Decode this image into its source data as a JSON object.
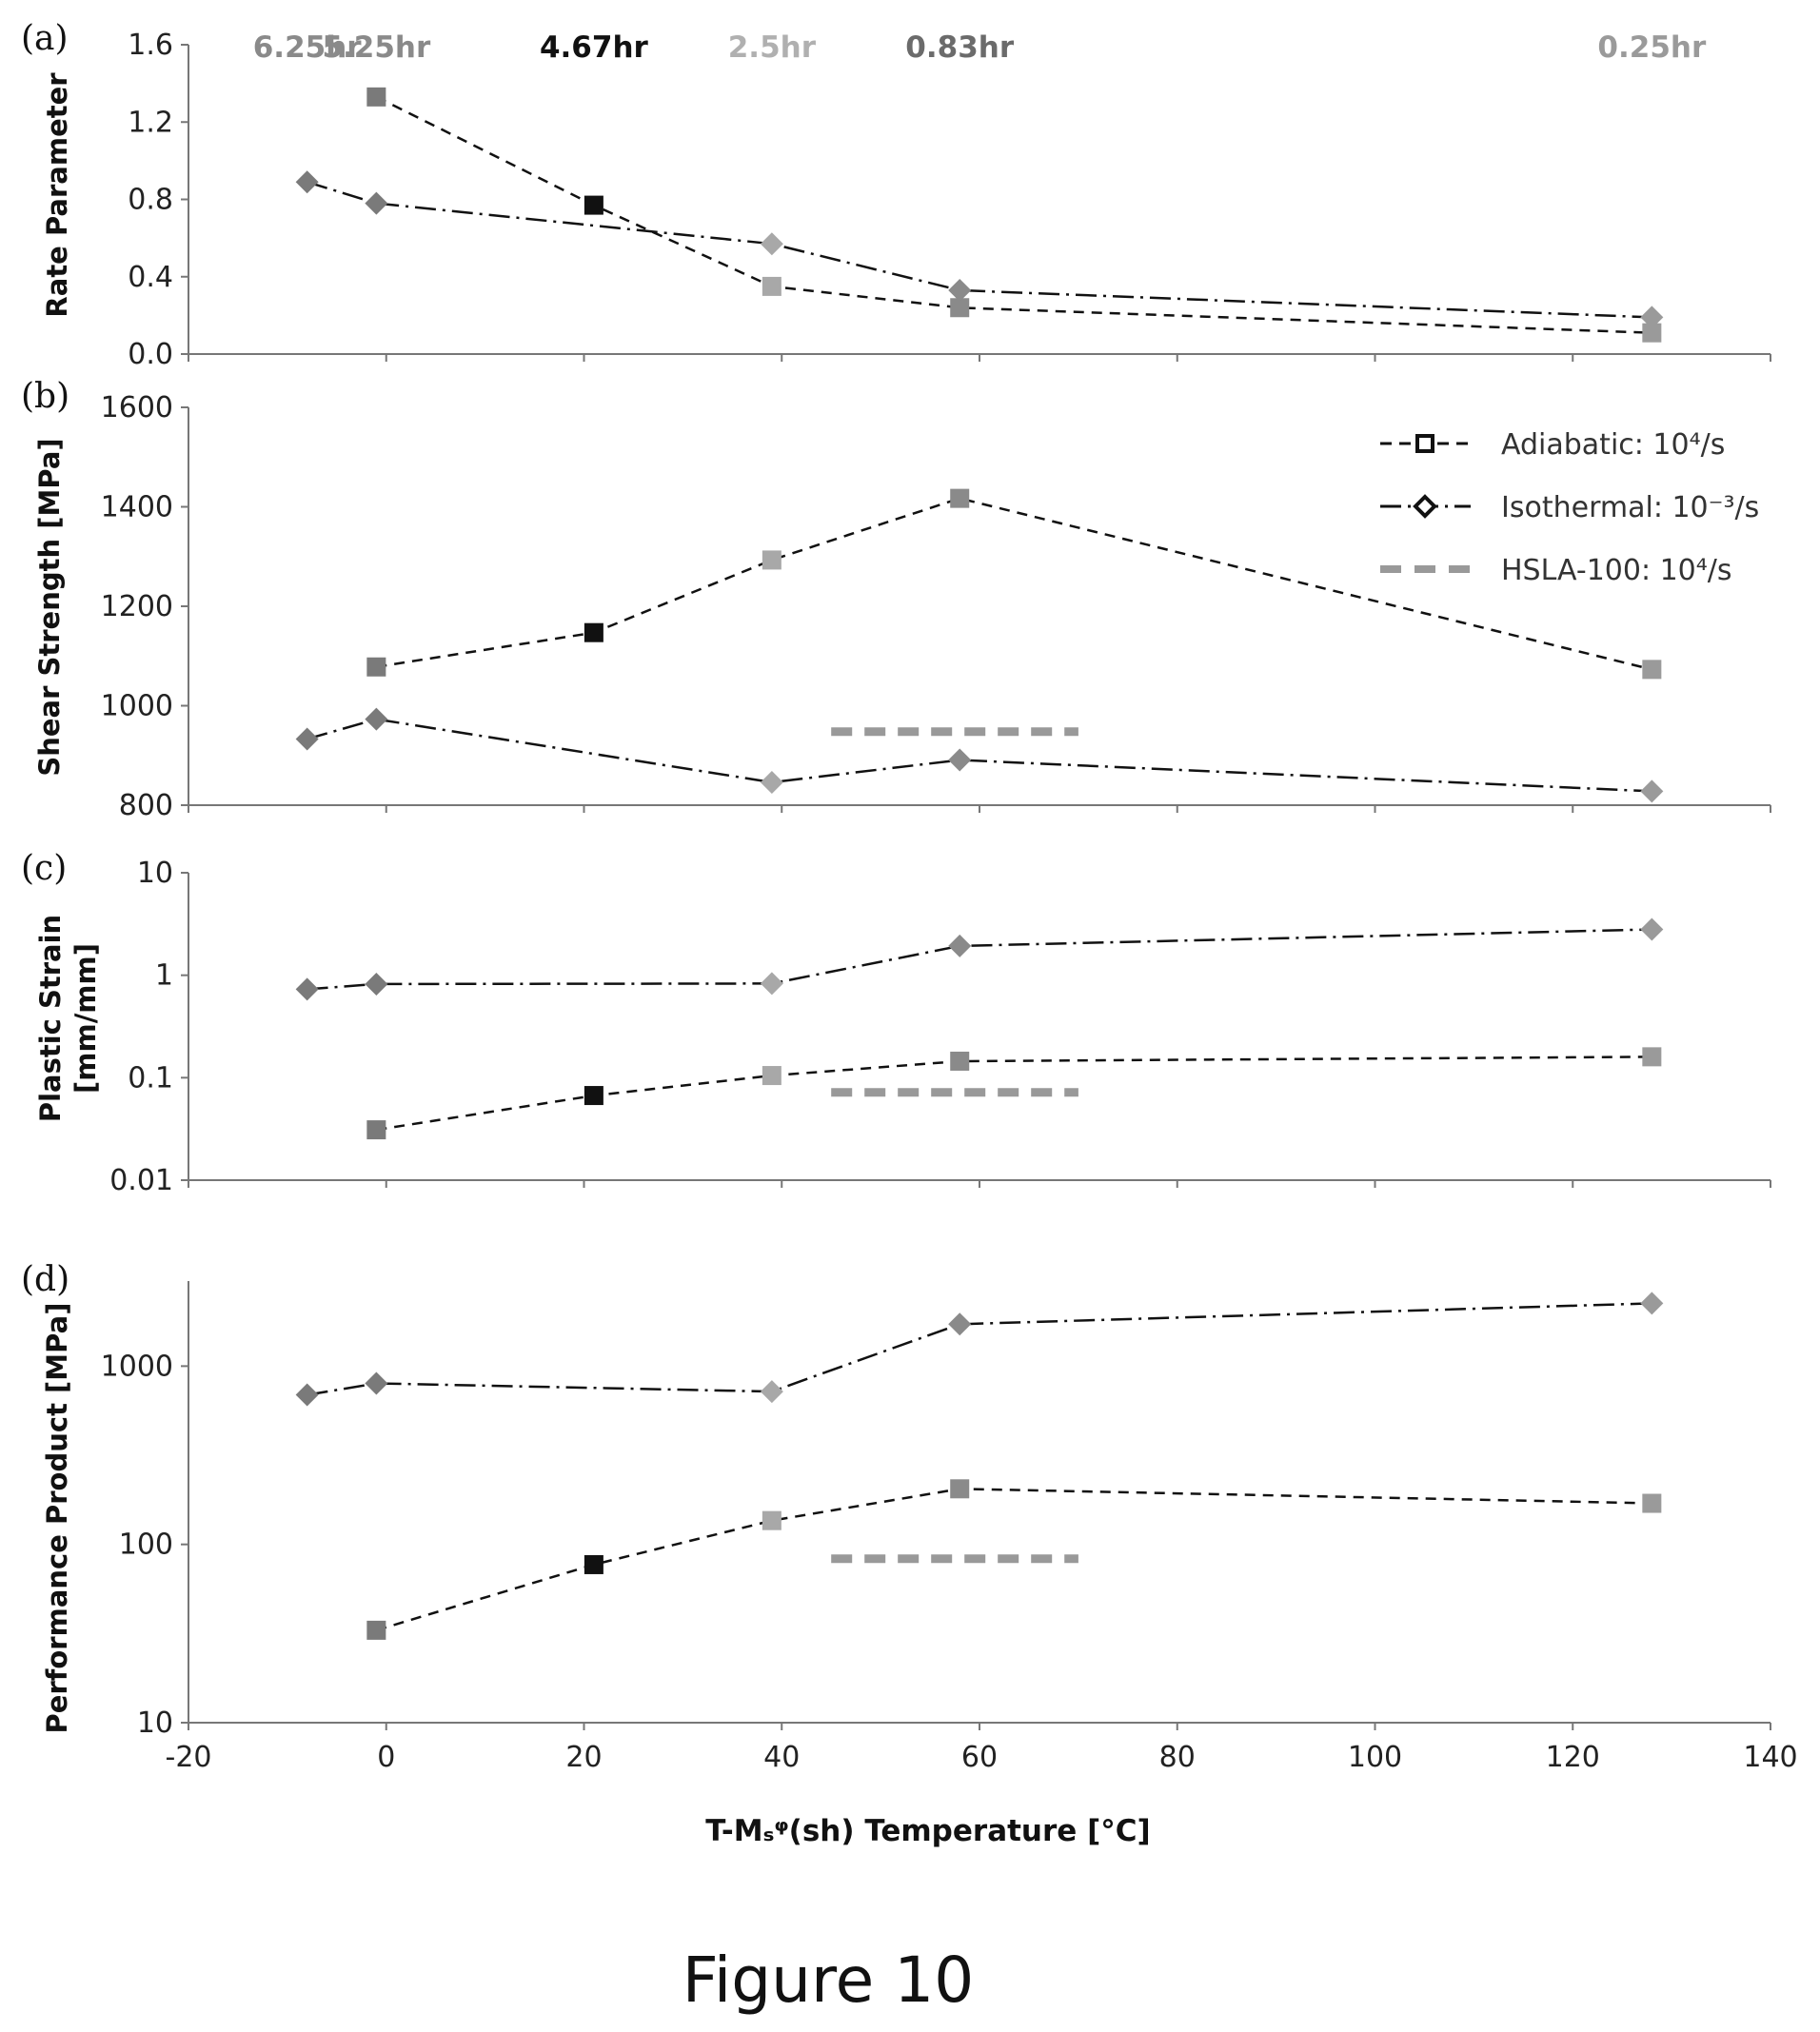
{
  "figure_caption": "Figure 10",
  "colors": {
    "time_labels": [
      "#8a8a8a",
      "#8a8a8a",
      "#111111",
      "#b0b0b0",
      "#6b6b6b",
      "#9a9a9a"
    ],
    "markers": [
      "#7a7a7a",
      "#7a7a7a",
      "#111111",
      "#a8a8a8",
      "#8a8a8a",
      "#9a9a9a"
    ],
    "hsla": "#999999",
    "line": "#111111"
  },
  "legend": {
    "adiabatic": "Adiabatic: 10⁴/s",
    "isothermal": "Isothermal: 10⁻³/s",
    "hsla": "HSLA-100: 10⁴/s"
  },
  "time_labels": [
    {
      "x": -8,
      "label": "6.25hr"
    },
    {
      "x": -1,
      "label": "5.25hr"
    },
    {
      "x": 21,
      "label": "4.67hr"
    },
    {
      "x": 39,
      "label": "2.5hr"
    },
    {
      "x": 58,
      "label": "0.83hr"
    },
    {
      "x": 128,
      "label": "0.25hr"
    }
  ],
  "chart_data": [
    {
      "panel": "(a)",
      "type": "line",
      "ylabel": "Rate Parameter",
      "xlim": [
        -20,
        140
      ],
      "ylim": [
        0,
        1.6
      ],
      "yscale": "linear",
      "yticks": [
        "0.0",
        "0.4",
        "0.8",
        "1.2",
        "1.6"
      ],
      "series": [
        {
          "x": [
            -1,
            21,
            39,
            58,
            128
          ],
          "y": [
            1.33,
            0.77,
            0.35,
            0.24,
            0.11
          ],
          "marker": "square",
          "dash": "dashed"
        },
        {
          "x": [
            -8,
            -1,
            39,
            58,
            128
          ],
          "y": [
            0.89,
            0.78,
            0.57,
            0.33,
            0.19
          ],
          "marker": "diamond",
          "dash": "dashdot"
        }
      ]
    },
    {
      "panel": "(b)",
      "type": "line",
      "ylabel": "Shear Strength [MPa]",
      "xlim": [
        -20,
        140
      ],
      "ylim": [
        800,
        1600
      ],
      "yscale": "linear",
      "yticks": [
        "800",
        "1000",
        "1200",
        "1400",
        "1600"
      ],
      "legend_position": "top-right",
      "series": [
        {
          "x": [
            -1,
            21,
            39,
            58,
            128
          ],
          "y": [
            1078,
            1147,
            1293,
            1417,
            1073
          ],
          "marker": "square",
          "dash": "dashed"
        },
        {
          "x": [
            -8,
            -1,
            39,
            58,
            128
          ],
          "y": [
            933,
            973,
            846,
            891,
            828
          ],
          "marker": "diamond",
          "dash": "dashdot"
        },
        {
          "x": [
            45,
            70
          ],
          "y": [
            948,
            948
          ],
          "marker": "none",
          "dash": "hsla"
        }
      ]
    },
    {
      "panel": "(c)",
      "type": "line",
      "ylabel_lines": [
        "Plastic Strain",
        "[mm/mm]"
      ],
      "xlim": [
        -20,
        140
      ],
      "ylim": [
        0.01,
        10
      ],
      "yscale": "log",
      "yticks": [
        "0.01",
        "0.1",
        "1",
        "10"
      ],
      "series": [
        {
          "x": [
            -1,
            21,
            39,
            58,
            128
          ],
          "y": [
            0.031,
            0.067,
            0.105,
            0.145,
            0.16
          ],
          "marker": "square",
          "dash": "dashed"
        },
        {
          "x": [
            -8,
            -1,
            39,
            58,
            128
          ],
          "y": [
            0.73,
            0.82,
            0.83,
            1.93,
            2.8
          ],
          "marker": "diamond",
          "dash": "dashdot"
        },
        {
          "x": [
            45,
            70
          ],
          "y": [
            0.072,
            0.072
          ],
          "marker": "none",
          "dash": "hsla"
        }
      ]
    },
    {
      "panel": "(d)",
      "type": "line",
      "ylabel": "Performance Product [MPa]",
      "xlabel": "T-Mₛᵠ(sh) Temperature [°C]",
      "xlim": [
        -20,
        140
      ],
      "ylim": [
        10,
        3000
      ],
      "yscale": "log",
      "yticks": [
        "10",
        "100",
        "1000"
      ],
      "xticks": [
        "-20",
        "0",
        "20",
        "40",
        "60",
        "80",
        "100",
        "120",
        "140"
      ],
      "series": [
        {
          "x": [
            -1,
            21,
            39,
            58,
            128
          ],
          "y": [
            33,
            77,
            136,
            205,
            170
          ],
          "marker": "square",
          "dash": "dashed"
        },
        {
          "x": [
            -8,
            -1,
            39,
            58,
            128
          ],
          "y": [
            690,
            800,
            720,
            1720,
            2250
          ],
          "marker": "diamond",
          "dash": "dashdot"
        },
        {
          "x": [
            45,
            70
          ],
          "y": [
            83,
            83
          ],
          "marker": "none",
          "dash": "hsla"
        }
      ]
    }
  ]
}
